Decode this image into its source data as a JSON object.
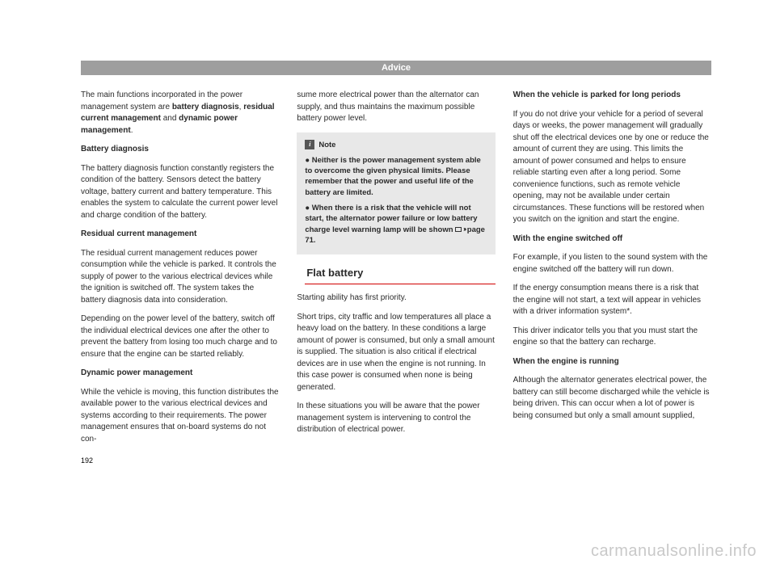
{
  "header": {
    "title": "Advice"
  },
  "col1": {
    "p1_a": "The main functions incorporated in the power management system are ",
    "p1_b1": "battery diagnosis",
    "p1_c": ", ",
    "p1_b2": "residual current management",
    "p1_d": " and ",
    "p1_b3": "dynamic power management",
    "p1_e": ".",
    "h1": "Battery diagnosis",
    "p2": "The battery diagnosis function constantly registers the condition of the battery. Sensors detect the battery voltage, battery current and battery temperature. This enables the system to calculate the current power level and charge condition of the battery.",
    "h2": "Residual current management",
    "p3": "The residual current management reduces power consumption while the vehicle is parked. It controls the supply of power to the various electrical devices while the ignition is switched off. The system takes the battery diagnosis data into consideration.",
    "p4": "Depending on the power level of the battery, switch off the individual electrical devices one after the other to prevent the battery from losing too much charge and to ensure that the engine can be started reliably.",
    "h3": "Dynamic power management",
    "p5": "While the vehicle is moving, this function distributes the available power to the various electrical devices and systems according to their requirements. The power management ensures that on-board systems do not con-"
  },
  "col2": {
    "p1": "sume more electrical power than the alternator can supply, and thus maintains the maximum possible battery power level.",
    "note": {
      "label": "Note",
      "b1": "Neither is the power management system able to overcome the given physical limits. Please remember that the power and useful life of the battery are limited.",
      "b2a": "When there is a risk that the vehicle will not start, the alternator power failure or low battery charge level warning lamp will be shown ",
      "b2b": " page 71."
    },
    "subtitle": "Flat battery",
    "p2": "Starting ability has first priority.",
    "p3": "Short trips, city traffic and low temperatures all place a heavy load on the battery. In these conditions a large amount of power is consumed, but only a small amount is supplied. The situation is also critical if electrical devices are in use when the engine is not running. In this case power is consumed when none is being generated.",
    "p4": "In these situations you will be aware that the power management system is intervening to control the distribution of electrical power."
  },
  "col3": {
    "h1": "When the vehicle is parked for long periods",
    "p1": "If you do not drive your vehicle for a period of several days or weeks, the power management will gradually shut off the electrical devices one by one or reduce the amount of current they are using. This limits the amount of power consumed and helps to ensure reliable starting even after a long period. Some convenience functions, such as remote vehicle opening, may not be available under certain circumstances. These functions will be restored when you switch on the ignition and start the engine.",
    "h2": "With the engine switched off",
    "p2": "For example, if you listen to the sound system with the engine switched off the battery will run down.",
    "p3": "If the energy consumption means there is a risk that the engine will not start, a text will appear in vehicles with a driver information system*.",
    "p4": "This driver indicator tells you that you must start the engine so that the battery can recharge.",
    "h3": "When the engine is running",
    "p5": "Although the alternator generates electrical power, the battery can still become discharged while the vehicle is being driven. This can occur when a lot of power is being consumed but only a small amount supplied,"
  },
  "pageNumber": "192",
  "watermark": "carmanualsonline.info"
}
